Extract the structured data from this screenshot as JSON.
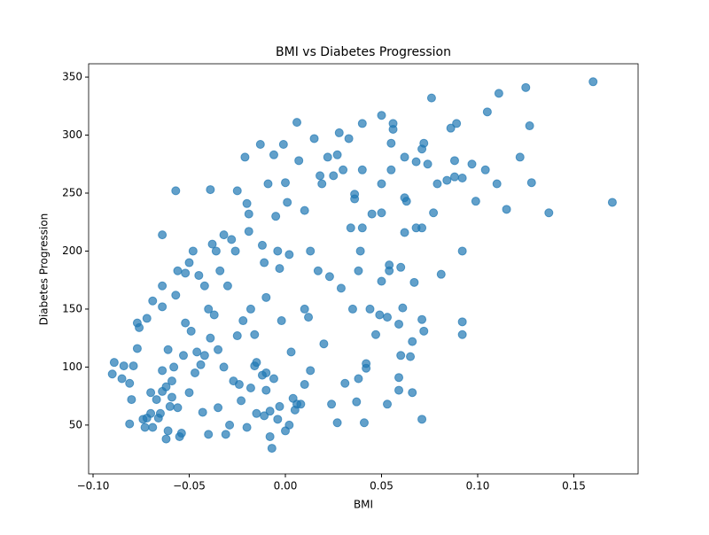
{
  "chart_data": {
    "type": "scatter",
    "title": "BMI vs Diabetes Progression",
    "x_label": "BMI",
    "y_label": "Diabetes Progression",
    "color": "#1f77b4",
    "alpha": 0.7,
    "xlim": [
      -0.1023,
      0.1834
    ],
    "ylim": [
      7.9,
      361.5
    ],
    "xticks": [
      {
        "value": -0.1,
        "label": "−0.10"
      },
      {
        "value": -0.05,
        "label": "−0.05"
      },
      {
        "value": 0,
        "label": "0.00"
      },
      {
        "value": 0.05,
        "label": "0.05"
      },
      {
        "value": 0.1,
        "label": "0.10"
      },
      {
        "value": 0.15,
        "label": "0.15"
      }
    ],
    "yticks": [
      50,
      100,
      150,
      200,
      250,
      300,
      350
    ],
    "x": [
      0.17,
      0.16,
      0.137,
      0.128,
      0.127,
      0.125,
      0.122,
      0.115,
      0.111,
      0.11,
      0.105,
      0.104,
      0.099,
      0.097,
      0.092,
      0.092,
      0.092,
      0.092,
      0.089,
      0.088,
      0.088,
      0.086,
      0.084,
      0.081,
      0.079,
      0.077,
      0.076,
      0.074,
      0.072,
      0.071,
      0.071,
      0.071,
      0.072,
      0.071,
      0.068,
      0.068,
      0.067,
      0.066,
      0.065,
      0.066,
      0.063,
      0.062,
      0.062,
      0.062,
      0.061,
      0.06,
      0.06,
      0.059,
      0.059,
      0.059,
      0.056,
      0.056,
      0.055,
      0.055,
      0.054,
      0.054,
      0.053,
      0.053,
      0.05,
      0.05,
      0.05,
      0.05,
      0.049,
      0.047,
      0.045,
      0.044,
      0.042,
      0.042,
      0.041,
      0.04,
      0.04,
      0.04,
      0.039,
      0.038,
      0.038,
      0.037,
      0.036,
      0.036,
      -0.09,
      -0.089,
      -0.085,
      -0.084,
      -0.081,
      -0.08,
      -0.081,
      -0.079,
      -0.077,
      -0.077,
      -0.076,
      -0.074,
      -0.073,
      -0.072,
      -0.072,
      -0.07,
      -0.07,
      -0.069,
      -0.069,
      -0.067,
      -0.066,
      -0.065,
      -0.064,
      -0.064,
      -0.064,
      -0.064,
      -0.064,
      -0.062,
      -0.062,
      -0.061,
      -0.061,
      -0.06,
      -0.059,
      -0.059,
      -0.058,
      -0.057,
      -0.057,
      -0.056,
      -0.056,
      -0.055,
      -0.054,
      -0.053,
      -0.052,
      -0.052,
      -0.05,
      -0.05,
      -0.049,
      -0.048,
      -0.047,
      -0.046,
      -0.045,
      -0.044,
      -0.043,
      -0.042,
      -0.042,
      -0.04,
      -0.04,
      -0.039,
      -0.039,
      -0.038,
      -0.037,
      -0.036,
      -0.035,
      -0.035,
      -0.034,
      -0.032,
      -0.032,
      -0.031,
      -0.03,
      -0.028,
      -0.026,
      -0.025,
      -0.025,
      -0.024,
      -0.022,
      -0.021,
      -0.02,
      -0.019,
      -0.019,
      -0.018,
      -0.016,
      -0.016,
      -0.015,
      -0.013,
      -0.012,
      -0.011,
      -0.01,
      -0.01,
      -0.009,
      -0.008,
      -0.007,
      -0.006,
      -0.005,
      -0.004,
      -0.003,
      -0.002,
      -0.001,
      0.0,
      0.001,
      0.002,
      0.003,
      0.005,
      0.006,
      0.007,
      0.008,
      0.01,
      0.01,
      0.012,
      0.013,
      0.015,
      0.017,
      0.018,
      0.019,
      0.02,
      0.022,
      0.023,
      0.024,
      0.025,
      0.027,
      0.027,
      0.028,
      0.029,
      0.03,
      0.031,
      0.033,
      0.034,
      0.035,
      -0.029,
      -0.027,
      -0.023,
      -0.02,
      -0.018,
      -0.015,
      -0.012,
      -0.011,
      -0.01,
      -0.008,
      -0.006,
      -0.004,
      -0.003,
      0.0,
      0.002,
      0.004,
      0.006,
      0.01,
      0.013
    ],
    "values": [
      242,
      346,
      233,
      259,
      308,
      341,
      281,
      236,
      336,
      258,
      320,
      270,
      243,
      275,
      263,
      200,
      139,
      128,
      310,
      278,
      264,
      306,
      261,
      180,
      258,
      233,
      332,
      275,
      293,
      288,
      220,
      141,
      131,
      55,
      277,
      220,
      173,
      122,
      109,
      78,
      243,
      281,
      246,
      216,
      151,
      186,
      110,
      137,
      91,
      80,
      305,
      310,
      293,
      270,
      188,
      183,
      143,
      68,
      317,
      258,
      233,
      174,
      145,
      128,
      232,
      150,
      103,
      99,
      52,
      310,
      270,
      220,
      200,
      183,
      90,
      70,
      249,
      245,
      94,
      104,
      90,
      101,
      86,
      72,
      51,
      101,
      116,
      138,
      134,
      55,
      48,
      56,
      142,
      78,
      60,
      48,
      157,
      72,
      56,
      60,
      79,
      97,
      152,
      170,
      214,
      83,
      38,
      45,
      115,
      66,
      74,
      88,
      100,
      162,
      252,
      183,
      65,
      40,
      43,
      110,
      138,
      181,
      190,
      78,
      131,
      200,
      95,
      113,
      179,
      102,
      61,
      170,
      110,
      150,
      42,
      125,
      253,
      206,
      145,
      200,
      115,
      65,
      183,
      214,
      100,
      42,
      170,
      210,
      200,
      252,
      127,
      85,
      140,
      281,
      241,
      232,
      217,
      150,
      128,
      101,
      60,
      292,
      205,
      190,
      160,
      95,
      258,
      40,
      30,
      283,
      230,
      200,
      185,
      140,
      292,
      259,
      242,
      197,
      113,
      63,
      311,
      278,
      68,
      235,
      150,
      143,
      200,
      297,
      183,
      265,
      258,
      120,
      281,
      178,
      68,
      265,
      283,
      52,
      302,
      168,
      270,
      86,
      297,
      220,
      150,
      50,
      88,
      71,
      48,
      82,
      104,
      93,
      58,
      80,
      62,
      90,
      55,
      66,
      45,
      50,
      73,
      68,
      85,
      97
    ]
  }
}
